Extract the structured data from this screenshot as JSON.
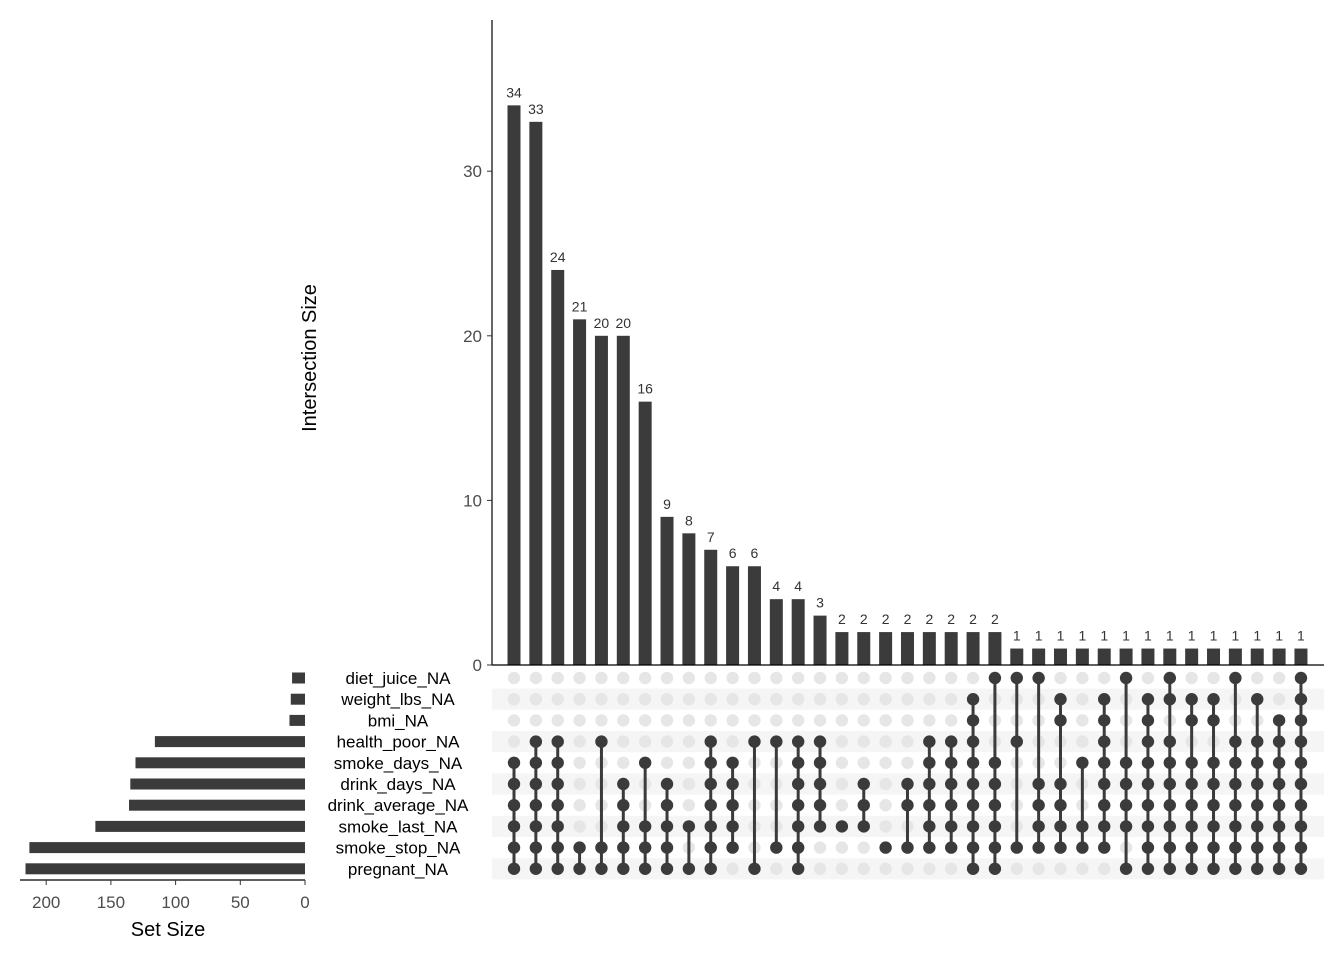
{
  "chart_data": {
    "type": "upset",
    "ylabel": "Intersection Size",
    "xlabel_sets": "Set Size",
    "ylim": [
      0,
      39.5
    ],
    "yticks": [
      0,
      10,
      20,
      30
    ],
    "set_size_ticks": [
      200,
      150,
      100,
      50,
      0
    ],
    "set_size_xlim": [
      0,
      220
    ],
    "sets": [
      {
        "name": "diet_juice_NA",
        "size": 10
      },
      {
        "name": "weight_lbs_NA",
        "size": 11
      },
      {
        "name": "bmi_NA",
        "size": 12
      },
      {
        "name": "health_poor_NA",
        "size": 116
      },
      {
        "name": "smoke_days_NA",
        "size": 131
      },
      {
        "name": "drink_days_NA",
        "size": 135
      },
      {
        "name": "drink_average_NA",
        "size": 136
      },
      {
        "name": "smoke_last_NA",
        "size": 162
      },
      {
        "name": "smoke_stop_NA",
        "size": 213
      },
      {
        "name": "pregnant_NA",
        "size": 216
      }
    ],
    "intersections": [
      {
        "size": 34,
        "sets": [
          "pregnant_NA",
          "smoke_stop_NA",
          "smoke_last_NA",
          "drink_average_NA",
          "drink_days_NA",
          "smoke_days_NA"
        ]
      },
      {
        "size": 33,
        "sets": [
          "pregnant_NA",
          "smoke_stop_NA",
          "smoke_last_NA",
          "drink_average_NA",
          "drink_days_NA",
          "smoke_days_NA",
          "health_poor_NA"
        ]
      },
      {
        "size": 24,
        "sets": [
          "pregnant_NA",
          "smoke_stop_NA",
          "smoke_last_NA",
          "drink_average_NA",
          "drink_days_NA",
          "smoke_days_NA",
          "health_poor_NA"
        ]
      },
      {
        "size": 21,
        "sets": [
          "pregnant_NA",
          "smoke_stop_NA"
        ]
      },
      {
        "size": 20,
        "sets": [
          "pregnant_NA",
          "smoke_stop_NA",
          "health_poor_NA"
        ]
      },
      {
        "size": 20,
        "sets": [
          "pregnant_NA",
          "smoke_stop_NA",
          "smoke_last_NA",
          "drink_average_NA",
          "drink_days_NA"
        ]
      },
      {
        "size": 16,
        "sets": [
          "pregnant_NA",
          "smoke_stop_NA",
          "smoke_last_NA",
          "smoke_days_NA"
        ]
      },
      {
        "size": 9,
        "sets": [
          "pregnant_NA",
          "smoke_stop_NA",
          "smoke_last_NA",
          "drink_average_NA",
          "drink_days_NA"
        ]
      },
      {
        "size": 8,
        "sets": [
          "pregnant_NA",
          "smoke_last_NA"
        ]
      },
      {
        "size": 7,
        "sets": [
          "pregnant_NA",
          "smoke_stop_NA",
          "smoke_last_NA",
          "drink_average_NA",
          "drink_days_NA",
          "smoke_days_NA",
          "health_poor_NA"
        ]
      },
      {
        "size": 6,
        "sets": [
          "smoke_stop_NA",
          "smoke_last_NA",
          "drink_average_NA",
          "drink_days_NA",
          "smoke_days_NA"
        ]
      },
      {
        "size": 6,
        "sets": [
          "pregnant_NA",
          "health_poor_NA"
        ]
      },
      {
        "size": 4,
        "sets": [
          "smoke_stop_NA",
          "health_poor_NA"
        ]
      },
      {
        "size": 4,
        "sets": [
          "pregnant_NA",
          "smoke_stop_NA",
          "smoke_last_NA",
          "drink_average_NA",
          "drink_days_NA",
          "smoke_days_NA",
          "health_poor_NA"
        ]
      },
      {
        "size": 3,
        "sets": [
          "smoke_last_NA",
          "drink_average_NA",
          "drink_days_NA",
          "smoke_days_NA",
          "health_poor_NA"
        ]
      },
      {
        "size": 2,
        "sets": [
          "smoke_last_NA"
        ]
      },
      {
        "size": 2,
        "sets": [
          "smoke_last_NA",
          "drink_average_NA",
          "drink_days_NA"
        ]
      },
      {
        "size": 2,
        "sets": [
          "smoke_stop_NA"
        ]
      },
      {
        "size": 2,
        "sets": [
          "smoke_stop_NA",
          "drink_average_NA",
          "drink_days_NA"
        ]
      },
      {
        "size": 2,
        "sets": [
          "smoke_stop_NA",
          "smoke_last_NA",
          "drink_average_NA",
          "drink_days_NA",
          "smoke_days_NA",
          "health_poor_NA"
        ]
      },
      {
        "size": 2,
        "sets": [
          "smoke_stop_NA",
          "smoke_last_NA",
          "drink_average_NA",
          "drink_days_NA",
          "smoke_days_NA",
          "health_poor_NA"
        ]
      },
      {
        "size": 2,
        "sets": [
          "pregnant_NA",
          "smoke_stop_NA",
          "smoke_last_NA",
          "drink_average_NA",
          "drink_days_NA",
          "smoke_days_NA",
          "health_poor_NA",
          "bmi_NA",
          "weight_lbs_NA"
        ]
      },
      {
        "size": 2,
        "sets": [
          "pregnant_NA",
          "smoke_stop_NA",
          "smoke_last_NA",
          "drink_average_NA",
          "drink_days_NA",
          "smoke_days_NA",
          "diet_juice_NA"
        ]
      },
      {
        "size": 1,
        "sets": [
          "smoke_stop_NA",
          "health_poor_NA",
          "diet_juice_NA"
        ]
      },
      {
        "size": 1,
        "sets": [
          "smoke_stop_NA",
          "smoke_last_NA",
          "drink_average_NA",
          "drink_days_NA",
          "diet_juice_NA"
        ]
      },
      {
        "size": 1,
        "sets": [
          "smoke_stop_NA",
          "smoke_last_NA",
          "drink_average_NA",
          "drink_days_NA",
          "bmi_NA",
          "weight_lbs_NA"
        ]
      },
      {
        "size": 1,
        "sets": [
          "smoke_stop_NA",
          "smoke_last_NA",
          "smoke_days_NA"
        ]
      },
      {
        "size": 1,
        "sets": [
          "smoke_stop_NA",
          "smoke_last_NA",
          "drink_average_NA",
          "drink_days_NA",
          "smoke_days_NA",
          "health_poor_NA",
          "bmi_NA",
          "weight_lbs_NA"
        ]
      },
      {
        "size": 1,
        "sets": [
          "pregnant_NA",
          "smoke_last_NA",
          "drink_average_NA",
          "drink_days_NA",
          "smoke_days_NA",
          "diet_juice_NA"
        ]
      },
      {
        "size": 1,
        "sets": [
          "pregnant_NA",
          "smoke_stop_NA",
          "smoke_last_NA",
          "drink_average_NA",
          "drink_days_NA",
          "smoke_days_NA",
          "health_poor_NA",
          "bmi_NA",
          "weight_lbs_NA"
        ]
      },
      {
        "size": 1,
        "sets": [
          "pregnant_NA",
          "smoke_stop_NA",
          "smoke_last_NA",
          "drink_average_NA",
          "drink_days_NA",
          "smoke_days_NA",
          "health_poor_NA",
          "weight_lbs_NA",
          "diet_juice_NA"
        ]
      },
      {
        "size": 1,
        "sets": [
          "pregnant_NA",
          "smoke_stop_NA",
          "smoke_last_NA",
          "drink_average_NA",
          "drink_days_NA",
          "smoke_days_NA",
          "bmi_NA",
          "weight_lbs_NA"
        ]
      },
      {
        "size": 1,
        "sets": [
          "pregnant_NA",
          "smoke_stop_NA",
          "smoke_last_NA",
          "drink_average_NA",
          "drink_days_NA",
          "smoke_days_NA",
          "bmi_NA",
          "weight_lbs_NA"
        ]
      },
      {
        "size": 1,
        "sets": [
          "pregnant_NA",
          "smoke_stop_NA",
          "smoke_last_NA",
          "drink_average_NA",
          "drink_days_NA",
          "smoke_days_NA",
          "health_poor_NA",
          "diet_juice_NA"
        ]
      },
      {
        "size": 1,
        "sets": [
          "pregnant_NA",
          "smoke_stop_NA",
          "smoke_last_NA",
          "drink_average_NA",
          "drink_days_NA",
          "smoke_days_NA",
          "health_poor_NA",
          "weight_lbs_NA"
        ]
      },
      {
        "size": 1,
        "sets": [
          "pregnant_NA",
          "smoke_stop_NA",
          "smoke_last_NA",
          "drink_average_NA",
          "drink_days_NA",
          "smoke_days_NA",
          "health_poor_NA",
          "bmi_NA"
        ]
      },
      {
        "size": 1,
        "sets": [
          "pregnant_NA",
          "smoke_stop_NA",
          "smoke_last_NA",
          "drink_average_NA",
          "drink_days_NA",
          "smoke_days_NA",
          "health_poor_NA",
          "bmi_NA",
          "weight_lbs_NA",
          "diet_juice_NA"
        ]
      }
    ],
    "grid": false,
    "colors": {
      "bar": "#3b3b3b",
      "dot_active": "#3b3b3b",
      "dot_inactive": "#e6e6e6",
      "stripe": "#f5f5f5",
      "axis": "#000000",
      "tick_text": "#4d4d4d"
    }
  }
}
